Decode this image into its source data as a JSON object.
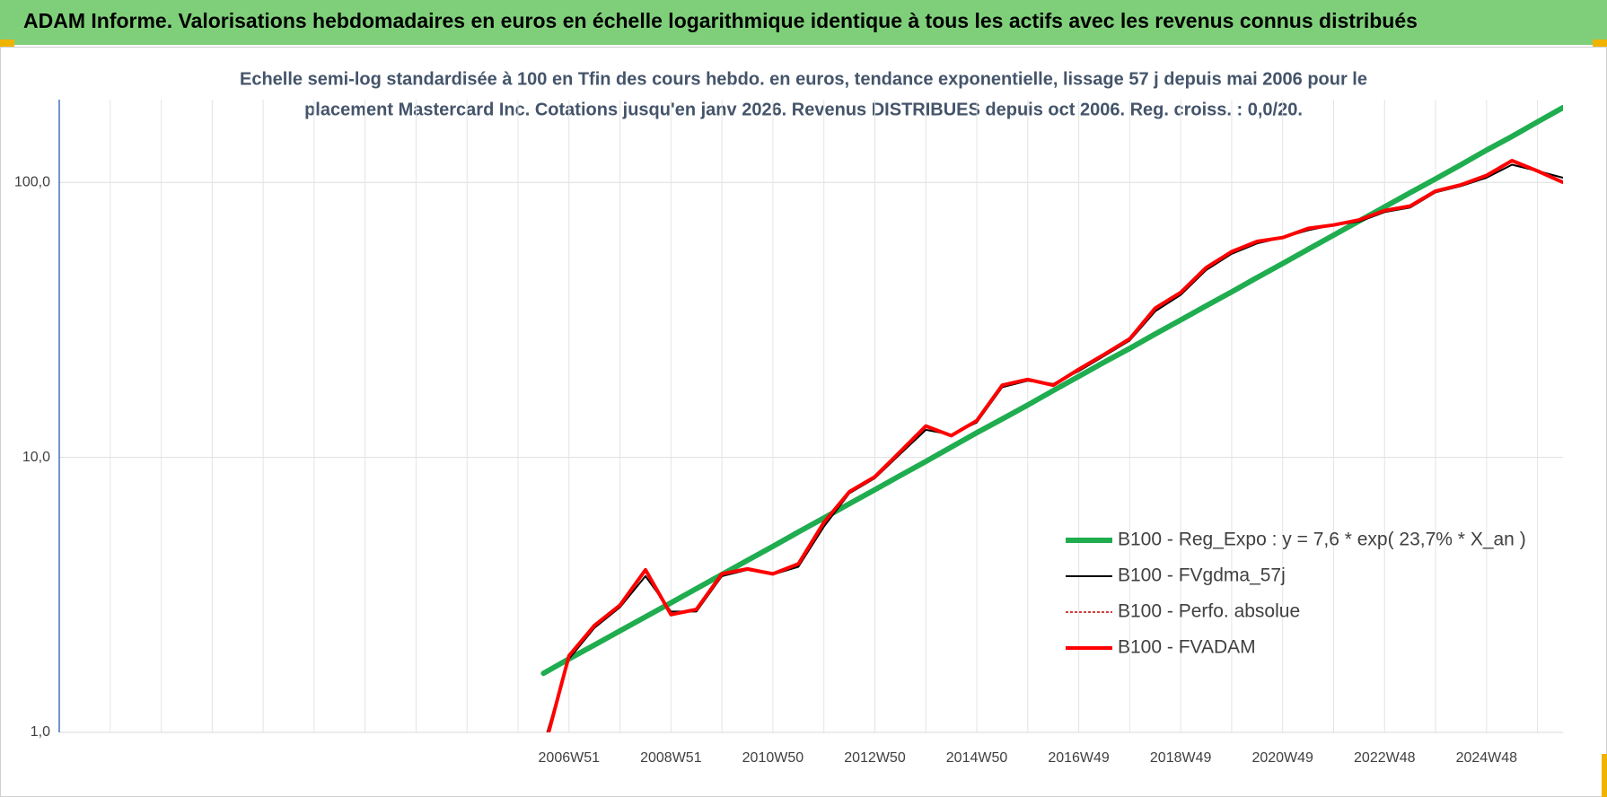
{
  "chart_data": {
    "type": "line",
    "title": "ADAM Informe. Valorisations hebdomadaires en euros en échelle logarithmique identique à tous les actifs avec les revenus connus distribués",
    "subtitle": [
      "Echelle semi-log standardisée à 100 en Tfin des cours hebdo. en euros, tendance exponentielle, lissage 57 j depuis mai 2006 pour le",
      "placement Mastercard Inc. Cotations jusqu'en janv 2026. Revenus DISTRIBUES depuis oct 2006. Reg. croiss. : 0,0/20."
    ],
    "log_scale": true,
    "grid": true,
    "legend": "right",
    "ylim": [
      1,
      200
    ],
    "yticks": [
      {
        "value": 1,
        "label": "1,0"
      },
      {
        "value": 10,
        "label": "10,0"
      },
      {
        "value": 100,
        "label": "100,0"
      }
    ],
    "categories": [
      null,
      null,
      null,
      null,
      null,
      null,
      null,
      null,
      null,
      null,
      null,
      null,
      null,
      null,
      null,
      null,
      null,
      null,
      null,
      null,
      "2006W51",
      null,
      null,
      null,
      "2008W51",
      null,
      null,
      null,
      "2010W50",
      null,
      null,
      null,
      "2012W50",
      null,
      null,
      null,
      "2014W50",
      null,
      null,
      null,
      "2016W49",
      null,
      null,
      null,
      "2018W49",
      null,
      null,
      null,
      "2020W49",
      null,
      null,
      null,
      "2022W48",
      null,
      null,
      null,
      "2024W48",
      null,
      null,
      null
    ],
    "series": [
      {
        "name": "B100 - Reg_Expo : y = 7,6 * exp( 23,7% *  X_an )",
        "color": "#1fad4f",
        "width": 6,
        "dash": null,
        "values": [
          null,
          null,
          null,
          null,
          null,
          null,
          null,
          null,
          null,
          null,
          null,
          null,
          null,
          null,
          null,
          null,
          null,
          null,
          null,
          1.64,
          1.85,
          2.08,
          2.34,
          2.63,
          2.96,
          3.33,
          3.75,
          4.22,
          4.75,
          5.35,
          6.02,
          6.78,
          7.63,
          8.59,
          9.67,
          10.9,
          12.3,
          13.8,
          15.5,
          17.5,
          19.7,
          22.2,
          24.9,
          28.1,
          31.6,
          35.6,
          40.0,
          45.1,
          50.7,
          57.1,
          64.3,
          72.4,
          81.5,
          91.7,
          103,
          116,
          131,
          147,
          166,
          187
        ]
      },
      {
        "name": "B100 - FVgdma_57j",
        "color": "#000000",
        "width": 2,
        "dash": null,
        "values": [
          null,
          null,
          null,
          null,
          null,
          null,
          null,
          null,
          null,
          null,
          null,
          null,
          null,
          null,
          null,
          null,
          null,
          null,
          null,
          0.9,
          1.85,
          2.4,
          2.85,
          3.7,
          2.75,
          2.75,
          3.7,
          3.9,
          3.75,
          4.0,
          5.6,
          7.4,
          8.4,
          10.3,
          12.6,
          12.1,
          13.4,
          18.0,
          19.0,
          18.5,
          20.6,
          23.4,
          26.6,
          34.0,
          39.0,
          48,
          55,
          60,
          63,
          67,
          70,
          72,
          78,
          81,
          92,
          97,
          104,
          116,
          110,
          104
        ]
      },
      {
        "name": "B100 - Perfo. absolue",
        "color": "#c00000",
        "width": 1.5,
        "dash": "3 2",
        "values": [
          null,
          null,
          null,
          null,
          null,
          null,
          null,
          null,
          null,
          null,
          null,
          null,
          null,
          null,
          null,
          null,
          null,
          null,
          null,
          0.85,
          1.9,
          2.45,
          2.9,
          3.9,
          2.68,
          2.8,
          3.77,
          3.93,
          3.77,
          4.1,
          5.8,
          7.5,
          8.5,
          10.5,
          13.0,
          12.0,
          13.6,
          18.3,
          19.2,
          18.3,
          20.9,
          23.7,
          27.0,
          34.9,
          39.8,
          49,
          56,
          61,
          63,
          68,
          70,
          73,
          79,
          82,
          93,
          98,
          106,
          120,
          110,
          100
        ]
      },
      {
        "name": "B100 - FVADAM",
        "color": "#ff0000",
        "width": 4,
        "dash": null,
        "values": [
          null,
          null,
          null,
          null,
          null,
          null,
          null,
          null,
          null,
          null,
          null,
          null,
          null,
          null,
          null,
          null,
          null,
          null,
          null,
          0.85,
          1.9,
          2.45,
          2.9,
          3.9,
          2.68,
          2.8,
          3.77,
          3.93,
          3.77,
          4.1,
          5.8,
          7.5,
          8.5,
          10.5,
          13.0,
          12.0,
          13.6,
          18.3,
          19.2,
          18.3,
          20.9,
          23.7,
          27.0,
          34.9,
          39.8,
          49,
          56,
          61,
          63,
          68,
          70,
          73,
          79,
          82,
          93,
          98,
          106,
          120,
          110,
          100
        ]
      }
    ]
  }
}
